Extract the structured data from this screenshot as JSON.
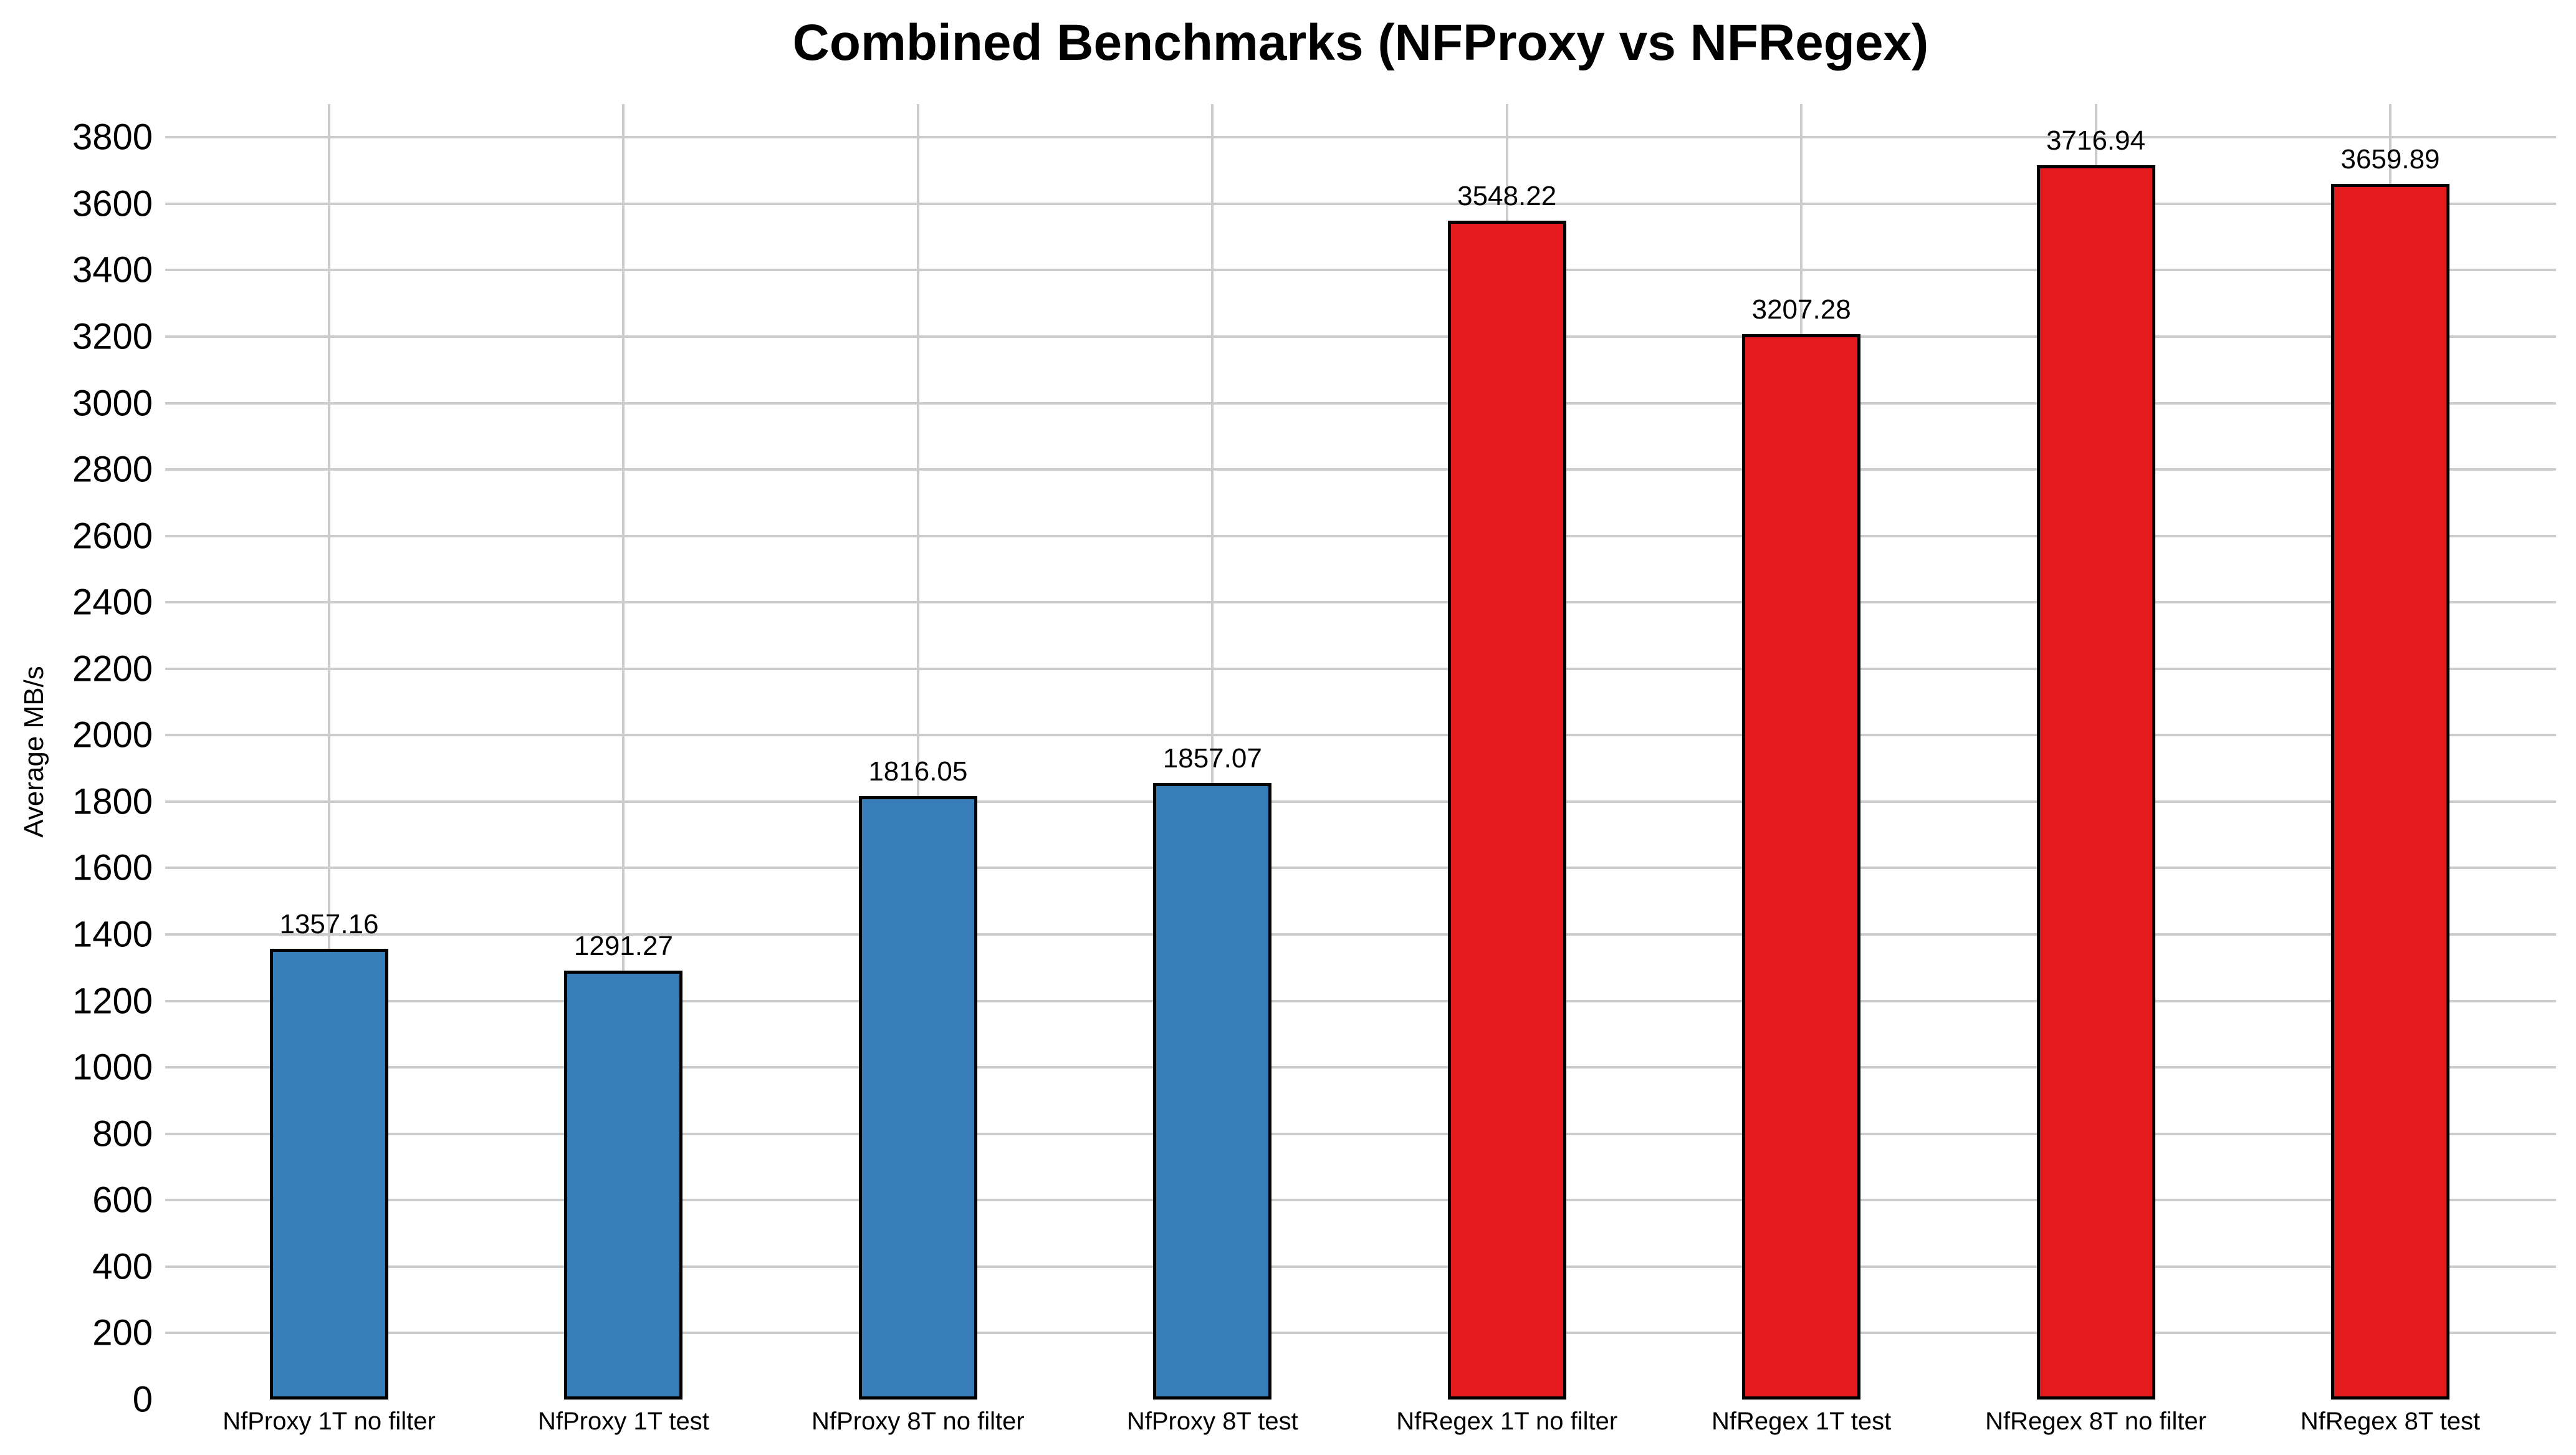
{
  "chart_data": {
    "type": "bar",
    "title": "Combined Benchmarks (NFProxy vs NFRegex)",
    "ylabel": "Average MB/s",
    "xlabel": "",
    "categories": [
      "NfProxy 1T no filter",
      "NfProxy 1T test",
      "NfProxy 8T no filter",
      "NfProxy 8T test",
      "NfRegex 1T no filter",
      "NfRegex 1T test",
      "NfRegex 8T no filter",
      "NfRegex 8T test"
    ],
    "values": [
      1357.16,
      1291.27,
      1816.05,
      1857.07,
      3548.22,
      3207.28,
      3716.94,
      3659.89
    ],
    "value_labels": [
      "1357.16",
      "1291.27",
      "1816.05",
      "1857.07",
      "3548.22",
      "3207.28",
      "3716.94",
      "3659.89"
    ],
    "bar_colors": [
      "#377eb8",
      "#377eb8",
      "#377eb8",
      "#377eb8",
      "#e41a1c",
      "#e41a1c",
      "#e41a1c",
      "#e41a1c"
    ],
    "bar_edge_color": "#000000",
    "ylim": [
      0,
      3900
    ],
    "yticks": [
      0,
      200,
      400,
      600,
      800,
      1000,
      1200,
      1400,
      1600,
      1800,
      2000,
      2200,
      2400,
      2600,
      2800,
      3000,
      3200,
      3400,
      3600,
      3800
    ],
    "grid": "both",
    "gridline_color": "#cccccc",
    "background_color": "#ffffff",
    "text_color": "#000000",
    "legend_position": "none"
  }
}
